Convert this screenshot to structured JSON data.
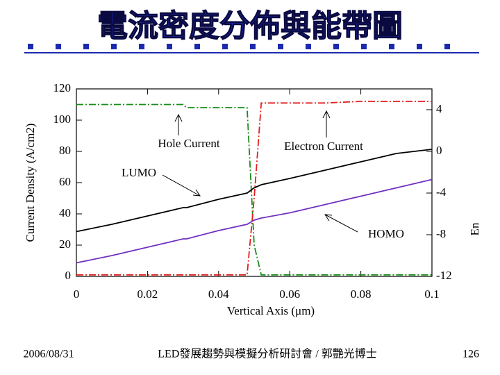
{
  "slide": {
    "title": "電流密度分佈與能帶圖",
    "date": "2006/08/31",
    "footer": "LED發展趨勢與模擬分析研討會 / 郭艷光博士",
    "page": "126"
  },
  "chart_data": {
    "type": "line",
    "xlabel": "Vertical Axis (μm)",
    "ylabel": "Current Density (A/cm2)",
    "y2label": "En",
    "x": [
      0,
      0.01,
      0.02,
      0.03,
      0.031,
      0.04,
      0.048,
      0.05,
      0.052,
      0.06,
      0.07,
      0.08,
      0.09,
      0.1
    ],
    "xlim": [
      0,
      0.1
    ],
    "xticks": [
      0,
      0.02,
      0.04,
      0.06,
      0.08,
      0.1
    ],
    "ylim": [
      0,
      120
    ],
    "yticks": [
      0,
      20,
      40,
      60,
      80,
      100,
      120
    ],
    "y2lim": [
      -12,
      6
    ],
    "y2ticks": [
      -12,
      -8,
      -4,
      0,
      4
    ],
    "series": [
      {
        "name": "Hole Current",
        "color": "#1a8c1a",
        "linestyle": "dashdot",
        "values": [
          110,
          110,
          110,
          110,
          108,
          108,
          108,
          20,
          1,
          1,
          1,
          1,
          1,
          1
        ]
      },
      {
        "name": "Electron Current",
        "color": "#e0201c",
        "linestyle": "dashdot",
        "values": [
          1,
          1,
          1,
          1,
          1,
          1,
          1,
          50,
          111,
          111,
          111,
          112,
          112,
          112
        ]
      },
      {
        "name": "LUMO",
        "color": "#000000",
        "linestyle": "solid",
        "axis": "y2",
        "values": [
          -7.7,
          -7.0,
          -6.2,
          -5.4,
          -5.4,
          -4.6,
          -4.0,
          -3.5,
          -3.2,
          -2.6,
          -1.8,
          -1.0,
          -0.2,
          0.2
        ]
      },
      {
        "name": "HOMO",
        "color": "#7030c0",
        "linestyle": "solid",
        "axis": "y2",
        "values": [
          -10.7,
          -10.0,
          -9.2,
          -8.4,
          -8.4,
          -7.6,
          -7.0,
          -6.6,
          -6.4,
          -5.9,
          -5.1,
          -4.3,
          -3.5,
          -2.7
        ]
      }
    ]
  }
}
